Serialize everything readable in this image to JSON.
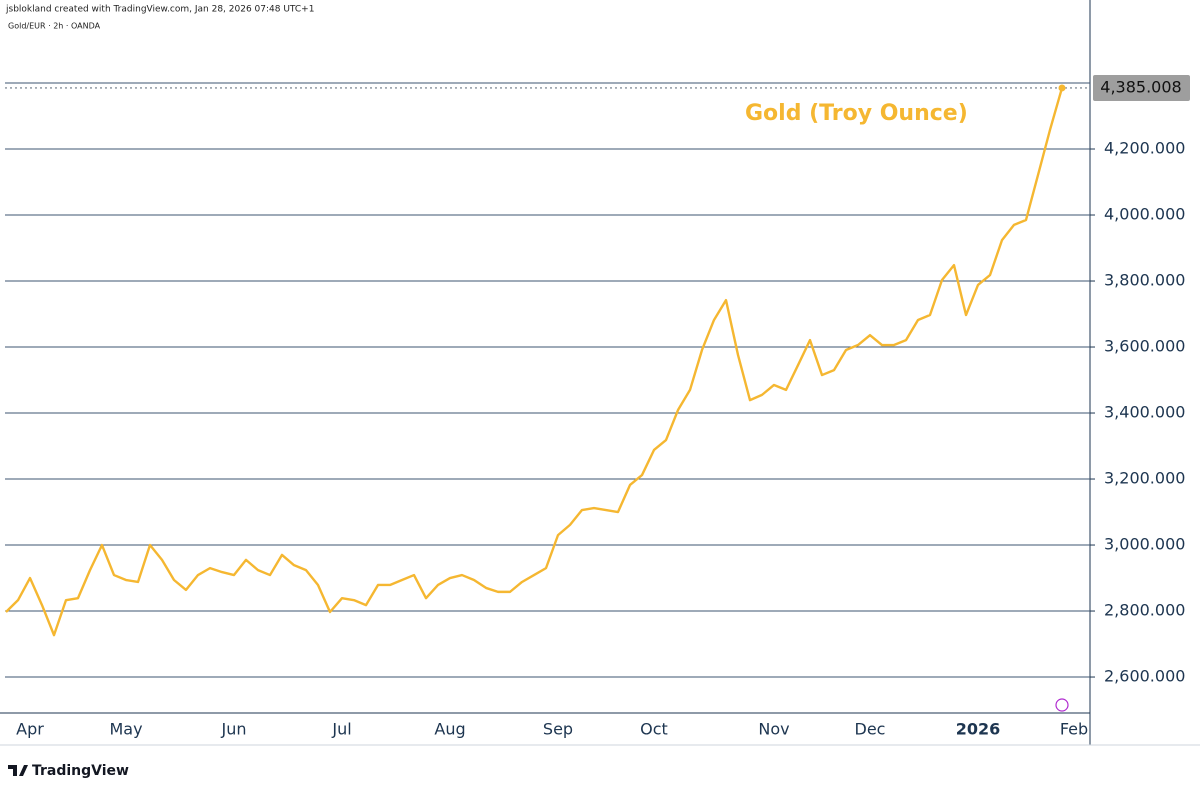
{
  "header": "jsblokland created with TradingView.com, Jan 28, 2026 07:48 UTC+1",
  "brand": "TradingView",
  "chart_data": {
    "type": "line",
    "title": "Gold/EUR · 2h · OANDA",
    "annotation": "Gold (Troy Ounce)",
    "last_label": "4,385.008",
    "color": "#f5b731",
    "grid": true,
    "categories": [
      null,
      null,
      "Apr",
      null,
      null,
      null,
      null,
      null,
      null,
      null,
      "May",
      null,
      null,
      null,
      null,
      null,
      null,
      null,
      null,
      "Jun",
      null,
      null,
      null,
      null,
      null,
      null,
      null,
      null,
      "Jul",
      null,
      null,
      null,
      null,
      null,
      null,
      null,
      null,
      "Aug",
      null,
      null,
      null,
      null,
      null,
      null,
      null,
      null,
      "Sep",
      null,
      null,
      null,
      null,
      null,
      null,
      null,
      "Oct",
      null,
      null,
      null,
      null,
      null,
      null,
      null,
      null,
      null,
      "Nov",
      null,
      null,
      null,
      null,
      null,
      null,
      null,
      "Dec",
      null,
      null,
      null,
      null,
      null,
      null,
      null,
      null,
      "2026",
      null,
      null,
      null,
      null,
      null,
      null,
      null,
      "Feb"
    ],
    "values": [
      2797,
      2833,
      2900,
      2818,
      2727,
      2833,
      2839,
      2924,
      3000,
      2909,
      2894,
      2888,
      3000,
      2955,
      2894,
      2864,
      2909,
      2930,
      2918,
      2909,
      2955,
      2924,
      2909,
      2970,
      2939,
      2924,
      2879,
      2797,
      2839,
      2833,
      2818,
      2879,
      2879,
      2894,
      2909,
      2839,
      2879,
      2900,
      2909,
      2894,
      2870,
      2858,
      2858,
      2888,
      2909,
      2930,
      3030,
      3061,
      3106,
      3112,
      3106,
      3100,
      3182,
      3212,
      3288,
      3318,
      3409,
      3470,
      3591,
      3682,
      3742,
      3576,
      3439,
      3455,
      3485,
      3470,
      3545,
      3621,
      3515,
      3530,
      3591,
      3606,
      3636,
      3606,
      3606,
      3621,
      3682,
      3697,
      3803,
      3848,
      3697,
      3788,
      3818,
      3924,
      3970,
      3985,
      4121,
      4258,
      4385.008,
      null
    ],
    "ylim": [
      2491,
      4597
    ],
    "yticks": [
      {
        "value": 2600,
        "label": "2,600.000"
      },
      {
        "value": 2800,
        "label": "2,800.000"
      },
      {
        "value": 3000,
        "label": "3,000.000"
      },
      {
        "value": 3200,
        "label": "3,200.000"
      },
      {
        "value": 3400,
        "label": "3,400.000"
      },
      {
        "value": 3600,
        "label": "3,600.000"
      },
      {
        "value": 3800,
        "label": "3,800.000"
      },
      {
        "value": 4000,
        "label": "4,000.000"
      },
      {
        "value": 4200,
        "label": "4,200.000"
      }
    ]
  }
}
